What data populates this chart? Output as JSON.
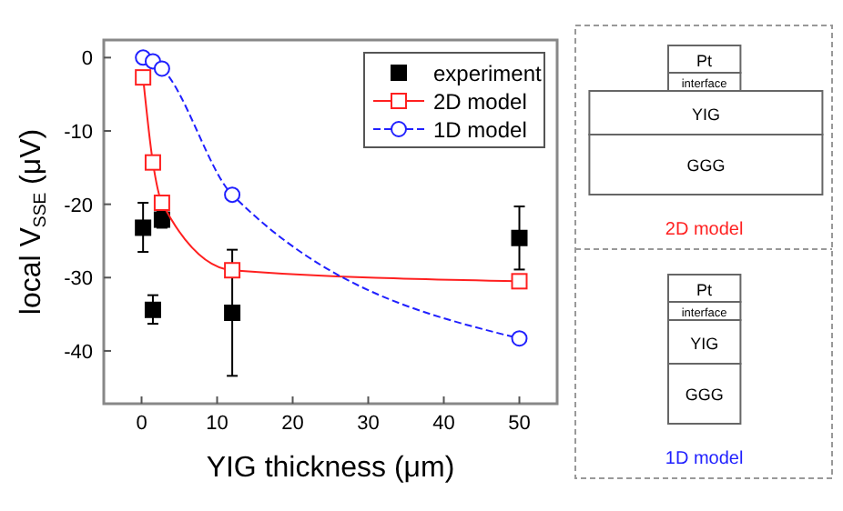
{
  "chart_data": {
    "type": "line",
    "xlabel": "YIG thickness (μm)",
    "ylabel": "local  V$_{SSE}$ (μV)",
    "xlim": [
      -5,
      55
    ],
    "ylim": [
      -47.2,
      2.4
    ],
    "xticks": [
      0,
      10,
      20,
      30,
      40,
      50
    ],
    "yticks": [
      0,
      -10,
      -20,
      -30,
      -40
    ],
    "grid": false,
    "legend": "top right",
    "series": [
      {
        "name": "experiment",
        "type": "scatter",
        "color": "#000000",
        "marker": "square",
        "x": [
          0.2,
          1.5,
          2.7,
          12,
          50
        ],
        "values": [
          -23.2,
          -34.4,
          -22.1,
          -34.8,
          -24.6
        ],
        "errors": [
          [
            -26.5,
            -19.8
          ],
          [
            -36.3,
            -32.4
          ],
          [
            -23.2,
            -21
          ],
          [
            -43.4,
            -26.2
          ],
          [
            -28.9,
            -20.3
          ]
        ]
      },
      {
        "name": "2D model",
        "color": "#ff2020",
        "marker": "square",
        "line_style": "solid",
        "x": [
          0.2,
          1.5,
          2.7,
          12,
          50
        ],
        "values": [
          -2.7,
          -14.3,
          -19.8,
          -29,
          -30.5
        ]
      },
      {
        "name": "1D model",
        "color": "#2020ff",
        "marker": "circle",
        "line_style": "dashed",
        "x": [
          0.2,
          1.5,
          2.7,
          12,
          50
        ],
        "values": [
          0,
          -0.5,
          -1.5,
          -18.7,
          -38.3
        ]
      }
    ],
    "annotations": [
      "Pt",
      "interface",
      "YIG",
      "GGG",
      "2D model",
      "Pt",
      "interface",
      "YIG",
      "GGG",
      "1D model"
    ]
  }
}
